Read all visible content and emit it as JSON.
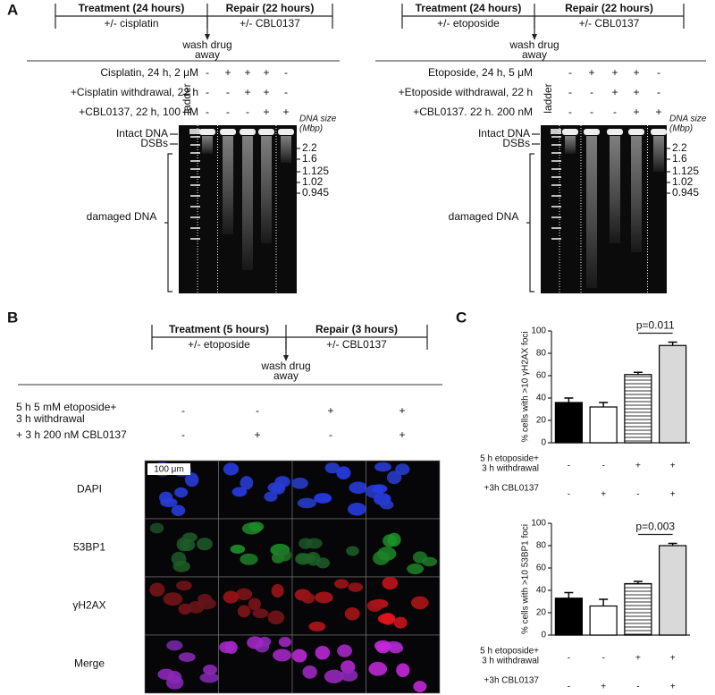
{
  "panels": {
    "A": {
      "label": "A",
      "left": {
        "timeline": {
          "treatment": "Treatment (24 hours)",
          "treatment_drug": "+/- cisplatin",
          "repair": "Repair (22 hours)",
          "repair_drug": "+/- CBL0137",
          "wash": [
            "wash drug",
            "away"
          ]
        },
        "conditions": [
          {
            "label": "Cisplatin, 24 h, 2 μM",
            "signs": [
              "-",
              "+",
              "+",
              "+",
              "-"
            ]
          },
          {
            "label": "+Cisplatin withdrawal, 22 h",
            "signs": [
              "-",
              "-",
              "+",
              "+",
              "-"
            ]
          },
          {
            "label": "+CBL0137, 22 h, 100 nM",
            "signs": [
              "-",
              "-",
              "-",
              "+",
              "+"
            ]
          }
        ],
        "ladder": "ladder",
        "size_title": [
          "DNA size",
          "(Mbp)"
        ],
        "sizes": [
          "2.2",
          "1.6",
          "1.125",
          "1.02",
          "0.945"
        ],
        "bands": [
          "Intact DNA",
          "DSBs"
        ],
        "damaged": "damaged DNA"
      },
      "right": {
        "timeline": {
          "treatment": "Treatment (24 hours)",
          "treatment_drug": "+/- etoposide",
          "repair": "Repair (22 hours)",
          "repair_drug": "+/- CBL0137",
          "wash": [
            "wash drug",
            "away"
          ]
        },
        "conditions": [
          {
            "label": "Etoposide, 24 h, 5 μM",
            "signs": [
              "-",
              "+",
              "+",
              "+",
              "-"
            ]
          },
          {
            "label": "+Etoposide withdrawal, 22 h",
            "signs": [
              "-",
              "-",
              "+",
              "+",
              "-"
            ]
          },
          {
            "label": "+CBL0137. 22 h. 200 nM",
            "signs": [
              "-",
              "-",
              "-",
              "+",
              "+"
            ]
          }
        ],
        "ladder": "ladder",
        "size_title": [
          "DNA size",
          "(Mbp)"
        ],
        "sizes": [
          "2.2",
          "1.6",
          "1.125",
          "1.02",
          "0.945"
        ],
        "bands": [
          "Intact DNA",
          "DSBs"
        ],
        "damaged": "damaged DNA"
      }
    },
    "B": {
      "label": "B",
      "timeline": {
        "treatment": "Treatment (5 hours)",
        "treatment_drug": "+/- etoposide",
        "repair": "Repair (3 hours)",
        "repair_drug": "+/- CBL0137",
        "wash": [
          "wash drug",
          "away"
        ]
      },
      "conditions": [
        {
          "label": [
            "5 h 5 mM etoposide+",
            "3 h withdrawal"
          ],
          "signs": [
            "-",
            "-",
            "+",
            "+"
          ]
        },
        {
          "label": [
            "+ 3 h 200 nM CBL0137"
          ],
          "signs": [
            "-",
            "+",
            "-",
            "+"
          ]
        }
      ],
      "scale_bar": "100 μm",
      "rows": [
        "DAPI",
        "53BP1",
        "γH2AX",
        "Merge"
      ]
    },
    "C": {
      "label": "C"
    }
  },
  "chart_data": [
    {
      "type": "bar",
      "ylabel": "% cells with >10 γH2AX foci",
      "values": [
        36,
        32,
        61,
        87
      ],
      "errors": [
        4,
        4,
        2,
        3
      ],
      "colors": [
        "#000000",
        "#ffffff",
        "#ffffff",
        "#d9d9d9"
      ],
      "hatch": [
        false,
        false,
        true,
        false
      ],
      "ylim": [
        0,
        100
      ],
      "yticks": [
        0,
        20,
        40,
        60,
        80,
        100
      ],
      "annotation": "p=0.011",
      "conditions": [
        {
          "label": [
            "5 h etoposide+",
            "3 h withdrawal"
          ],
          "signs": [
            "-",
            "-",
            "+",
            "+"
          ]
        },
        {
          "label": [
            "+3h CBL0137"
          ],
          "signs": [
            "-",
            "+",
            "-",
            "+"
          ]
        }
      ]
    },
    {
      "type": "bar",
      "ylabel": "% cells with >10 53BP1 foci",
      "values": [
        33,
        26,
        46,
        80
      ],
      "errors": [
        5,
        6,
        2,
        2
      ],
      "colors": [
        "#000000",
        "#ffffff",
        "#ffffff",
        "#d9d9d9"
      ],
      "hatch": [
        false,
        false,
        true,
        false
      ],
      "ylim": [
        0,
        100
      ],
      "yticks": [
        0,
        20,
        40,
        60,
        80,
        100
      ],
      "annotation": "p=0.003",
      "conditions": [
        {
          "label": [
            "5 h etoposide+",
            "3 h withdrawal"
          ],
          "signs": [
            "-",
            "-",
            "+",
            "+"
          ]
        },
        {
          "label": [
            "+3h CBL0137"
          ],
          "signs": [
            "-",
            "+",
            "-",
            "+"
          ]
        }
      ]
    }
  ]
}
